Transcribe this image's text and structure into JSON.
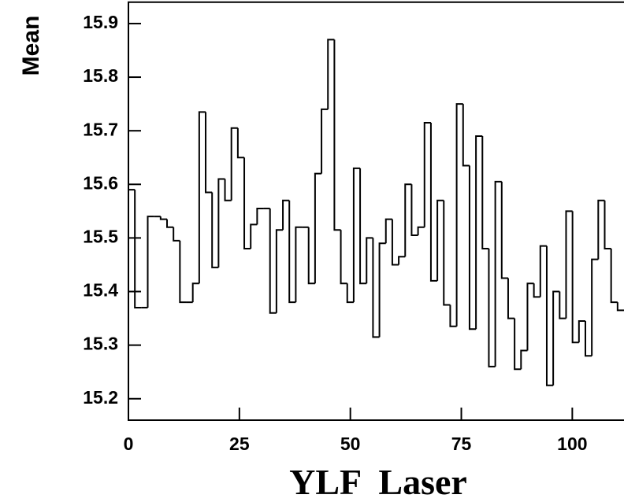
{
  "chart_data": {
    "type": "histogram",
    "x_label": "YLF  Laser",
    "y_label": "Mean",
    "bins": [
      0,
      1.45,
      2.9,
      4.35,
      5.8,
      7.25,
      8.7,
      10.15,
      11.6,
      13.05,
      14.5,
      15.95,
      17.4,
      18.85,
      20.3,
      21.75,
      23.2,
      24.65,
      26.1,
      27.55,
      29,
      30.45,
      31.9,
      33.35,
      34.8,
      36.25,
      37.7,
      39.15,
      40.6,
      42.05,
      43.5,
      44.95,
      46.4,
      47.85,
      49.3,
      50.75,
      52.2,
      53.65,
      55.1,
      56.55,
      58,
      59.45,
      60.9,
      62.35,
      63.8,
      65.25,
      66.7,
      68.15,
      69.6,
      71.05,
      72.5,
      73.95,
      75.4,
      76.85,
      78.3,
      79.75,
      81.2,
      82.65,
      84.1,
      85.55,
      87,
      88.45,
      89.9,
      91.35,
      92.8,
      94.25,
      95.7,
      97.15,
      98.6,
      100.05,
      101.5,
      102.95,
      104.4,
      105.85,
      107.3,
      108.75,
      110.2,
      111.65
    ],
    "values": [
      15.59,
      15.37,
      15.37,
      15.54,
      15.54,
      15.535,
      15.52,
      15.495,
      15.38,
      15.38,
      15.415,
      15.735,
      15.585,
      15.445,
      15.61,
      15.57,
      15.705,
      15.65,
      15.48,
      15.525,
      15.555,
      15.555,
      15.36,
      15.515,
      15.57,
      15.38,
      15.52,
      15.52,
      15.415,
      15.62,
      15.74,
      15.87,
      15.515,
      15.415,
      15.38,
      15.63,
      15.415,
      15.5,
      15.315,
      15.49,
      15.535,
      15.45,
      15.465,
      15.6,
      15.505,
      15.52,
      15.715,
      15.42,
      15.57,
      15.375,
      15.335,
      15.75,
      15.635,
      15.33,
      15.69,
      15.48,
      15.26,
      15.605,
      15.425,
      15.35,
      15.255,
      15.29,
      15.415,
      15.39,
      15.485,
      15.225,
      15.4,
      15.35,
      15.55,
      15.305,
      15.345,
      15.28,
      15.46,
      15.57,
      15.48,
      15.38,
      15.365
    ],
    "color": "#000000",
    "xlim": [
      0,
      111.65
    ],
    "xticks": [
      0,
      25,
      50,
      75,
      100
    ],
    "ylim": [
      15.16,
      15.94
    ],
    "yticks": [
      15.2,
      15.3,
      15.4,
      15.5,
      15.6,
      15.7,
      15.8,
      15.9
    ]
  }
}
